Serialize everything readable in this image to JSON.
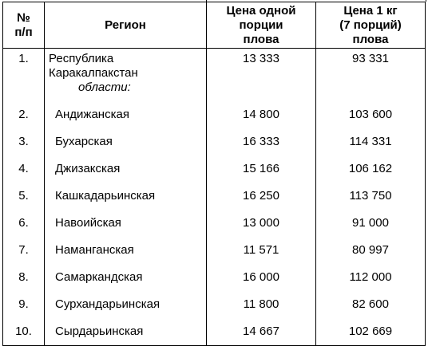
{
  "table": {
    "headers": {
      "num": "№\nп/п",
      "region": "Регион",
      "price_portion": "Цена одной\nпорции\nплова",
      "price_kg": "Цена 1 кг\n(7 порций)\nплова"
    },
    "first_row": {
      "num": "1.",
      "region": "Республика\nКаракалпакстан",
      "price_portion": "13 333",
      "price_kg": "93 331"
    },
    "subheading": "области:",
    "rows": [
      {
        "num": "2.",
        "region": "Андижанская",
        "price_portion": "14 800",
        "price_kg": "103 600"
      },
      {
        "num": "3.",
        "region": "Бухарская",
        "price_portion": "16 333",
        "price_kg": "114 331"
      },
      {
        "num": "4.",
        "region": "Джизакская",
        "price_portion": "15 166",
        "price_kg": "106 162"
      },
      {
        "num": "5.",
        "region": "Кашкадарьинская",
        "price_portion": "16 250",
        "price_kg": "113 750"
      },
      {
        "num": "6.",
        "region": "Навоийская",
        "price_portion": "13 000",
        "price_kg": "91 000"
      },
      {
        "num": "7.",
        "region": "Наманганская",
        "price_portion": "11 571",
        "price_kg": "80 997"
      },
      {
        "num": "8.",
        "region": "Самаркандская",
        "price_portion": "16 000",
        "price_kg": "112 000"
      },
      {
        "num": "9.",
        "region": "Сурхандарьинская",
        "price_portion": "11 800",
        "price_kg": "82 600"
      },
      {
        "num": "10.",
        "region": "Сырдарьинская",
        "price_portion": "14 667",
        "price_kg": "102 669"
      }
    ]
  }
}
